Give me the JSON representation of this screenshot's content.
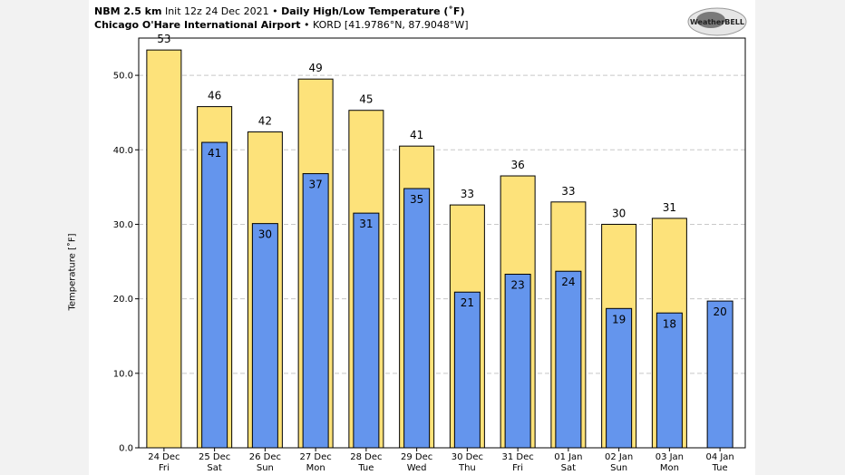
{
  "header": {
    "model": "NBM 2.5 km",
    "init": "Init 12z 24 Dec 2021",
    "sep": "•",
    "title": "Daily High/Low Temperature (˚F)",
    "location": "Chicago O'Hare International Airport",
    "station": "KORD [41.9786°N, 87.9048°W]"
  },
  "logo": {
    "text": "WeatherBELL"
  },
  "chart_data": {
    "type": "bar",
    "ylabel": "Temperature [˚F]",
    "ylim": [
      0,
      55
    ],
    "yticks": [
      "0.0",
      "10.0",
      "20.0",
      "30.0",
      "40.0",
      "50.0"
    ],
    "grid": true,
    "categories": [
      {
        "date": "24 Dec",
        "day": "Fri"
      },
      {
        "date": "25 Dec",
        "day": "Sat"
      },
      {
        "date": "26 Dec",
        "day": "Sun"
      },
      {
        "date": "27 Dec",
        "day": "Mon"
      },
      {
        "date": "28 Dec",
        "day": "Tue"
      },
      {
        "date": "29 Dec",
        "day": "Wed"
      },
      {
        "date": "30 Dec",
        "day": "Thu"
      },
      {
        "date": "31 Dec",
        "day": "Fri"
      },
      {
        "date": "01 Jan",
        "day": "Sat"
      },
      {
        "date": "02 Jan",
        "day": "Sun"
      },
      {
        "date": "03 Jan",
        "day": "Mon"
      },
      {
        "date": "04 Jan",
        "day": "Tue"
      }
    ],
    "series": [
      {
        "color": "#fde27a",
        "values": [
          53.4,
          45.8,
          42.4,
          49.5,
          45.3,
          40.5,
          32.6,
          36.5,
          33.0,
          30.0,
          30.8,
          null
        ],
        "labels": [
          "53",
          "46",
          "42",
          "49",
          "45",
          "41",
          "33",
          "36",
          "33",
          "30",
          "31",
          ""
        ]
      },
      {
        "color": "#6495ed",
        "values": [
          null,
          41.0,
          30.1,
          36.8,
          31.5,
          34.8,
          20.9,
          23.3,
          23.7,
          18.7,
          18.1,
          19.7
        ],
        "labels": [
          "",
          "41",
          "30",
          "37",
          "31",
          "35",
          "21",
          "23",
          "24",
          "19",
          "18",
          "20"
        ]
      }
    ]
  }
}
